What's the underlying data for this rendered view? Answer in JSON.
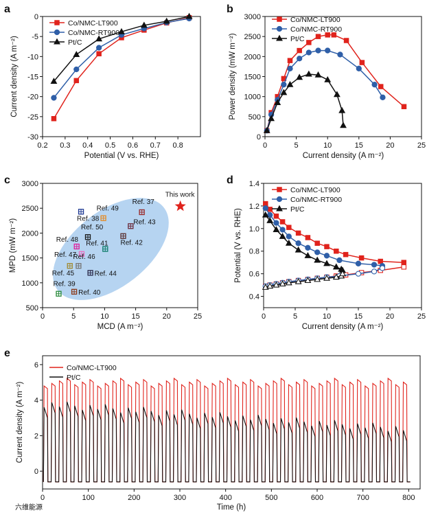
{
  "watermark": "六维能源",
  "colors": {
    "red": "#e0231c",
    "blue": "#2f5fa8",
    "black": "#111111",
    "ellipse": "#a9cdee",
    "star": "#e0231c"
  },
  "chart_data": [
    {
      "panel": "a",
      "type": "line",
      "xlabel": "Potential (V vs. RHE)",
      "ylabel": "Current density (A m⁻²)",
      "xlim": [
        0.2,
        0.9
      ],
      "ylim": [
        -30,
        0
      ],
      "xticks": [
        "0.2",
        "0.3",
        "0.4",
        "0.5",
        "0.6",
        "0.7",
        "0.8"
      ],
      "yticks": [
        "0",
        "-5",
        "-10",
        "-15",
        "-20",
        "-25",
        "-30"
      ],
      "legend_position": "top-left",
      "series": [
        {
          "name": "Co/NMC-LT900",
          "marker": "square",
          "color": "#e0231c",
          "x": [
            0.25,
            0.35,
            0.45,
            0.55,
            0.65,
            0.75,
            0.85
          ],
          "y": [
            -25.5,
            -16,
            -9.3,
            -5.3,
            -3.4,
            -1.6,
            -0.3
          ]
        },
        {
          "name": "Co/NMC-RT900",
          "marker": "circle",
          "color": "#2f5fa8",
          "x": [
            0.25,
            0.35,
            0.45,
            0.55,
            0.65,
            0.75,
            0.85
          ],
          "y": [
            -20.3,
            -13.2,
            -7.8,
            -4.6,
            -3.0,
            -1.5,
            -0.5
          ]
        },
        {
          "name": "Pt/C",
          "marker": "triangle",
          "color": "#111111",
          "x": [
            0.25,
            0.35,
            0.45,
            0.55,
            0.65,
            0.75,
            0.85
          ],
          "y": [
            -16.2,
            -9.5,
            -5.6,
            -3.8,
            -2.2,
            -1.2,
            0.0
          ]
        }
      ]
    },
    {
      "panel": "b",
      "type": "line",
      "xlabel": "Current density (A m⁻²)",
      "ylabel": "Power density (mW m⁻²)",
      "xlim": [
        0,
        25
      ],
      "ylim": [
        0,
        3000
      ],
      "xticks": [
        "0",
        "5",
        "10",
        "15",
        "20",
        "25"
      ],
      "yticks": [
        "0",
        "500",
        "1000",
        "1500",
        "2000",
        "2500",
        "3000"
      ],
      "legend_position": "top-left",
      "series": [
        {
          "name": "Co/NMC-LT900",
          "marker": "square",
          "color": "#e0231c",
          "x": [
            0.3,
            1,
            2,
            3,
            4,
            5.5,
            7,
            8.5,
            10,
            11,
            13,
            15.5,
            18.5,
            22.2
          ],
          "y": [
            150,
            600,
            1000,
            1450,
            1900,
            2150,
            2350,
            2500,
            2540,
            2540,
            2400,
            1850,
            1250,
            750
          ]
        },
        {
          "name": "Co/NMC-RT900",
          "marker": "circle",
          "color": "#2f5fa8",
          "x": [
            0.3,
            1,
            2,
            3,
            4,
            5.5,
            7,
            8.5,
            10,
            12,
            15,
            17.5,
            18.8
          ],
          "y": [
            150,
            550,
            920,
            1300,
            1700,
            1950,
            2100,
            2150,
            2150,
            2050,
            1700,
            1300,
            980
          ]
        },
        {
          "name": "Pt/C",
          "marker": "triangle",
          "color": "#111111",
          "x": [
            0.3,
            1,
            2,
            3,
            4,
            5.5,
            7,
            8.5,
            10,
            11.5,
            12.3,
            12.5
          ],
          "y": [
            150,
            450,
            850,
            1100,
            1300,
            1480,
            1560,
            1540,
            1420,
            1050,
            650,
            280
          ]
        }
      ]
    },
    {
      "panel": "c",
      "type": "scatter",
      "xlabel": "MCD (A m⁻²)",
      "ylabel": "MPD (mW m⁻²)",
      "xlim": [
        0,
        25
      ],
      "ylim": [
        500,
        3000
      ],
      "xticks": [
        "0",
        "5",
        "10",
        "15",
        "20",
        "25"
      ],
      "yticks": [
        "500",
        "1000",
        "1500",
        "2000",
        "2500",
        "3000"
      ],
      "points": [
        {
          "label": "This work",
          "x": 22.2,
          "y": 2540,
          "color": "#e0231c"
        },
        {
          "label": "Ref. 37",
          "x": 16.0,
          "y": 2420,
          "color": "#9a2a2a"
        },
        {
          "label": "Ref. 38",
          "x": 6.2,
          "y": 2430,
          "color": "#1f3a93"
        },
        {
          "label": "Ref. 49",
          "x": 9.8,
          "y": 2300,
          "color": "#e58a22"
        },
        {
          "label": "Ref. 43",
          "x": 14.2,
          "y": 2140,
          "color": "#6b2a3a"
        },
        {
          "label": "Ref. 50",
          "x": 7.3,
          "y": 1920,
          "color": "#1a1a1a"
        },
        {
          "label": "Ref. 42",
          "x": 13.0,
          "y": 1940,
          "color": "#5a3030"
        },
        {
          "label": "Ref. 48",
          "x": 5.5,
          "y": 1730,
          "color": "#e01e9a"
        },
        {
          "label": "Ref. 41",
          "x": 10.1,
          "y": 1680,
          "color": "#0f7d6b"
        },
        {
          "label": "Ref. 47",
          "x": 6.3,
          "y": 1580,
          "color": "#ea6fc0"
        },
        {
          "label": "Ref. 46",
          "x": 5.8,
          "y": 1340,
          "color": "#777777"
        },
        {
          "label": "Ref. 45",
          "x": 4.4,
          "y": 1340,
          "color": "#a08a35"
        },
        {
          "label": "Ref. 44",
          "x": 7.7,
          "y": 1200,
          "color": "#2a2a4a"
        },
        {
          "label": "Ref. 40",
          "x": 5.1,
          "y": 820,
          "color": "#8b3a1a"
        },
        {
          "label": "Ref. 39",
          "x": 2.6,
          "y": 780,
          "color": "#2a8a3a"
        }
      ]
    },
    {
      "panel": "d",
      "type": "line",
      "xlabel": "Current density (A m⁻²)",
      "ylabel": "Potential (V vs. RHE)",
      "xlim": [
        0,
        25
      ],
      "ylim": [
        0.3,
        1.4
      ],
      "xticks": [
        "0",
        "5",
        "10",
        "15",
        "20",
        "25"
      ],
      "yticks": [
        "0.4",
        "0.6",
        "0.8",
        "1.0",
        "1.2",
        "1.4"
      ],
      "legend_position": "top-right",
      "series": [
        {
          "name": "Co/NMC-LT900",
          "marker": "square",
          "color": "#e0231c",
          "x": [
            0.3,
            1,
            2,
            3,
            4,
            5.5,
            7,
            8.5,
            10,
            11.5,
            13,
            15.5,
            18.5,
            22.2
          ],
          "y": [
            1.22,
            1.17,
            1.11,
            1.06,
            1.01,
            0.96,
            0.92,
            0.87,
            0.84,
            0.8,
            0.77,
            0.74,
            0.71,
            0.7
          ],
          "anode_y": [
            0.49,
            0.5,
            0.51,
            0.52,
            0.53,
            0.54,
            0.55,
            0.56,
            0.57,
            0.58,
            0.59,
            0.61,
            0.63,
            0.66
          ]
        },
        {
          "name": "Co/NMC-RT900",
          "marker": "circle",
          "color": "#2f5fa8",
          "x": [
            0.3,
            1,
            2,
            3,
            4,
            5.5,
            7,
            8.5,
            10,
            12,
            15,
            17.5,
            18.8
          ],
          "y": [
            1.18,
            1.12,
            1.05,
            0.99,
            0.93,
            0.87,
            0.83,
            0.79,
            0.76,
            0.72,
            0.69,
            0.68,
            0.67
          ],
          "anode_y": [
            0.49,
            0.5,
            0.51,
            0.52,
            0.53,
            0.54,
            0.55,
            0.56,
            0.57,
            0.58,
            0.6,
            0.62,
            0.65
          ]
        },
        {
          "name": "Pt/C",
          "marker": "triangle",
          "color": "#111111",
          "x": [
            0.3,
            1,
            2,
            3,
            4,
            5.5,
            7,
            8.5,
            10,
            11.5,
            12.3,
            12.5
          ],
          "y": [
            1.12,
            1.07,
            0.99,
            0.93,
            0.87,
            0.81,
            0.76,
            0.72,
            0.69,
            0.66,
            0.64,
            0.63
          ],
          "anode_y": [
            0.48,
            0.49,
            0.5,
            0.51,
            0.52,
            0.53,
            0.54,
            0.55,
            0.56,
            0.57,
            0.58,
            0.6
          ]
        }
      ]
    },
    {
      "panel": "e",
      "type": "line",
      "xlabel": "Time (h)",
      "ylabel": "Current density (A m⁻²)",
      "xlim": [
        0,
        825
      ],
      "ylim": [
        -1,
        6.5
      ],
      "xticks": [
        "0",
        "100",
        "200",
        "300",
        "400",
        "500",
        "600",
        "700",
        "800"
      ],
      "yticks": [
        "0",
        "2",
        "4",
        "6"
      ],
      "legend_position": "top-left",
      "series": [
        {
          "name": "Co/NMC-LT900",
          "color": "#e0231c",
          "cycles": 48,
          "period_h": 16.7,
          "high": 5.0,
          "low": -0.6
        },
        {
          "name": "Pt/C",
          "color": "#111111",
          "cycles": 48,
          "period_h": 16.7,
          "high_start": 3.8,
          "high_end": 2.4,
          "low": -0.6
        }
      ]
    }
  ],
  "panel_letters": {
    "a": "a",
    "b": "b",
    "c": "c",
    "d": "d",
    "e": "e"
  }
}
